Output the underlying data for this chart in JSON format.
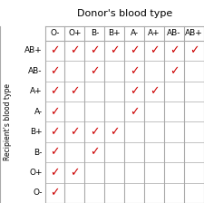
{
  "title": "Donor's blood type",
  "ylabel": "Recipient's blood type",
  "donors": [
    "O-",
    "O+",
    "B-",
    "B+",
    "A-",
    "A+",
    "AB-",
    "AB+"
  ],
  "recipients": [
    "AB+",
    "AB-",
    "A+",
    "A-",
    "B+",
    "B-",
    "O+",
    "O-"
  ],
  "compatibility": {
    "AB+": [
      "O-",
      "O+",
      "B-",
      "B+",
      "A-",
      "A+",
      "AB-",
      "AB+"
    ],
    "AB-": [
      "O-",
      "B-",
      "A-",
      "AB-"
    ],
    "A+": [
      "O-",
      "O+",
      "A-",
      "A+"
    ],
    "A-": [
      "O-",
      "A-"
    ],
    "B+": [
      "O-",
      "O+",
      "B-",
      "B+"
    ],
    "B-": [
      "O-",
      "B-"
    ],
    "O+": [
      "O-",
      "O+"
    ],
    "O-": [
      "O-"
    ]
  },
  "check_color": "#cc0000",
  "grid_color": "#aaaaaa",
  "bg_color": "#ffffff",
  "title_fontsize": 8,
  "label_fontsize": 5.5,
  "cell_fontsize": 9,
  "tick_fontsize": 6.5
}
